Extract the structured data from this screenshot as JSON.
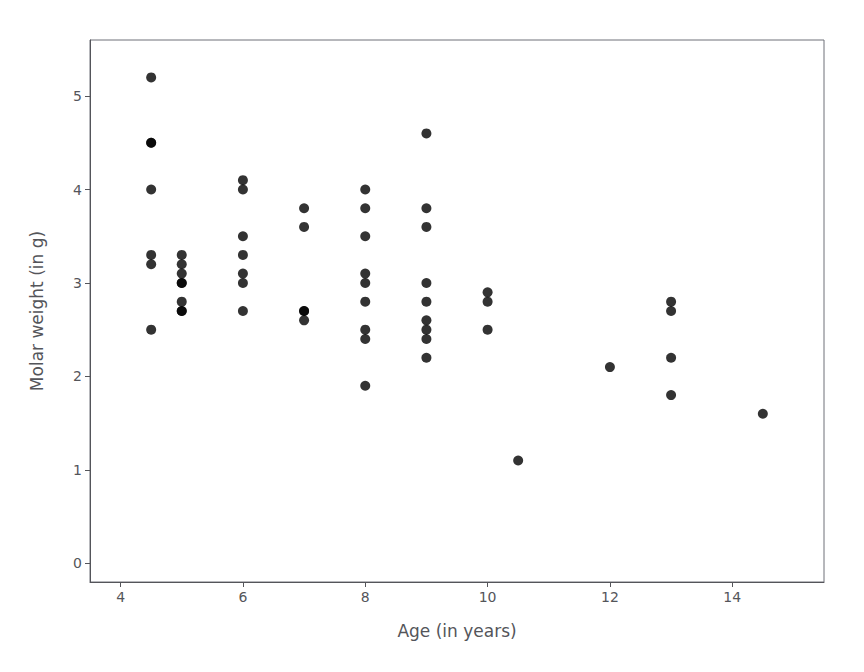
{
  "chart_data": {
    "type": "scatter",
    "xlabel": "Age (in years)",
    "ylabel": "Molar weight (in g)",
    "x": [
      4.5,
      4.5,
      4.5,
      4.5,
      4.5,
      4.5,
      4.5,
      5.0,
      5.0,
      5.0,
      5.0,
      5.0,
      5.0,
      5.0,
      5.0,
      6.0,
      6.0,
      6.0,
      6.0,
      6.0,
      6.0,
      6.0,
      7.0,
      7.0,
      7.0,
      7.0,
      7.0,
      8.0,
      8.0,
      8.0,
      8.0,
      8.0,
      8.0,
      8.0,
      8.0,
      8.0,
      9.0,
      9.0,
      9.0,
      9.0,
      9.0,
      9.0,
      9.0,
      9.0,
      9.0,
      10.0,
      10.0,
      10.0,
      10.5,
      12.0,
      13.0,
      13.0,
      13.0,
      13.0,
      14.5
    ],
    "values": [
      5.2,
      4.5,
      4.5,
      4.0,
      3.3,
      3.2,
      2.5,
      3.3,
      3.2,
      3.1,
      3.0,
      3.0,
      2.8,
      2.7,
      2.7,
      4.1,
      4.0,
      3.5,
      3.3,
      3.1,
      3.0,
      2.7,
      3.8,
      3.6,
      2.7,
      2.7,
      2.6,
      4.0,
      3.8,
      3.5,
      3.1,
      3.0,
      2.8,
      2.5,
      2.4,
      1.9,
      4.6,
      3.8,
      3.6,
      3.0,
      2.8,
      2.6,
      2.5,
      2.4,
      2.2,
      2.9,
      2.8,
      2.5,
      1.1,
      2.1,
      2.7,
      2.8,
      2.2,
      1.8,
      1.6
    ],
    "color": "black",
    "xlim": [
      3.5,
      15.5
    ],
    "ylim": [
      -0.2,
      5.6
    ],
    "xticks": [
      4,
      6,
      8,
      10,
      12,
      14
    ],
    "yticks": [
      0,
      1,
      2,
      3,
      4,
      5
    ],
    "grid": false
  }
}
